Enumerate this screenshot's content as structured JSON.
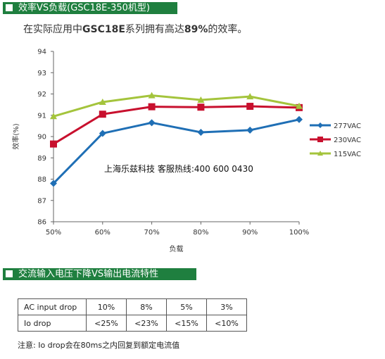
{
  "section1": {
    "title": "效率VS负载(GSC18E-350机型)"
  },
  "intro": {
    "prefix": "在实际应用中",
    "model": "GSC18E",
    "middle": "系列拥有高达",
    "value": "89%",
    "suffix": "的效率。"
  },
  "chart_data": {
    "type": "line",
    "title": "",
    "xlabel": "负载",
    "ylabel": "效率(%)",
    "categories": [
      "50%",
      "60%",
      "70%",
      "80%",
      "90%",
      "100%"
    ],
    "ylim": [
      86,
      94
    ],
    "yticks": [
      "86",
      "87",
      "88",
      "89",
      "90",
      "91",
      "92",
      "93",
      "94"
    ],
    "grid": false,
    "legend": "right",
    "series": [
      {
        "name": "277VAC",
        "color": "#1f6fb5",
        "marker": "diamond",
        "values": [
          87.8,
          90.15,
          90.65,
          90.2,
          90.3,
          90.8
        ]
      },
      {
        "name": "230VAC",
        "color": "#c8102e",
        "marker": "square",
        "values": [
          89.65,
          91.05,
          91.4,
          91.38,
          91.42,
          91.36
        ]
      },
      {
        "name": "115VAC",
        "color": "#a4c43c",
        "marker": "triangle",
        "values": [
          90.95,
          91.62,
          91.93,
          91.72,
          91.88,
          91.43
        ]
      }
    ],
    "annotation": "上海乐兹科技 客服热线:400 600 0430"
  },
  "section2": {
    "title": "交流输入电压下降VS输出电流特性"
  },
  "spec_table": {
    "rows": [
      {
        "label": "AC input drop",
        "cells": [
          "10%",
          "8%",
          "5%",
          "3%"
        ]
      },
      {
        "label": "Io drop",
        "cells": [
          "<25%",
          "<23%",
          "<15%",
          "<10%"
        ]
      }
    ]
  },
  "note": "注意: Io drop会在80ms之内回复到额定电流值"
}
